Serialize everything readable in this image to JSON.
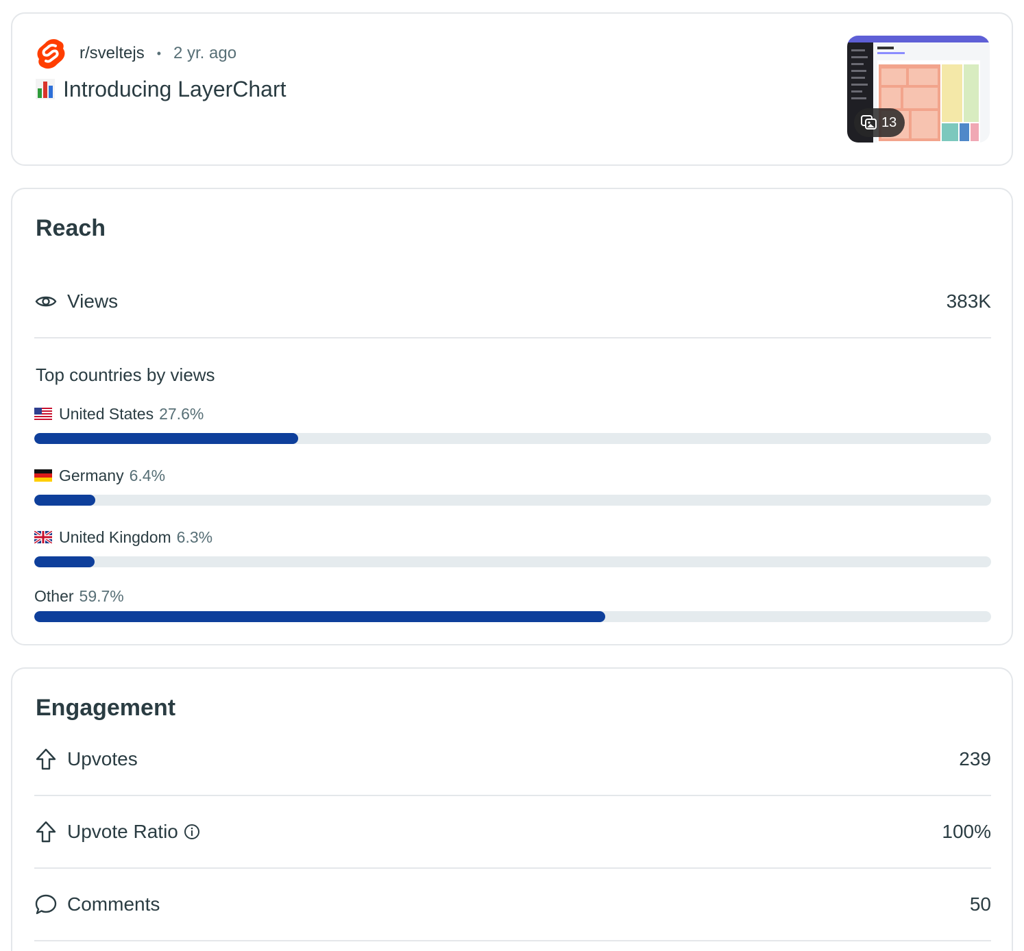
{
  "post": {
    "subreddit": "r/sveltejs",
    "separator": "•",
    "time_ago": "2 yr. ago",
    "title": "Introducing LayerChart",
    "gallery_count": "13",
    "logo_color": "#ff3e00"
  },
  "reach": {
    "title": "Reach",
    "views": {
      "label": "Views",
      "value": "383K"
    },
    "countries_heading": "Top countries by views",
    "countries": [
      {
        "name": "United States",
        "pct_label": "27.6%",
        "pct": 27.6,
        "flag": "us"
      },
      {
        "name": "Germany",
        "pct_label": "6.4%",
        "pct": 6.4,
        "flag": "de"
      },
      {
        "name": "United Kingdom",
        "pct_label": "6.3%",
        "pct": 6.3,
        "flag": "gb"
      },
      {
        "name": "Other",
        "pct_label": "59.7%",
        "pct": 59.7,
        "flag": ""
      }
    ],
    "bar_color": "#0e3f9b",
    "track_color": "#e5ebee"
  },
  "engagement": {
    "title": "Engagement",
    "upvotes": {
      "label": "Upvotes",
      "value": "239"
    },
    "upvote_ratio": {
      "label": "Upvote Ratio",
      "value": "100%"
    },
    "comments": {
      "label": "Comments",
      "value": "50"
    }
  }
}
